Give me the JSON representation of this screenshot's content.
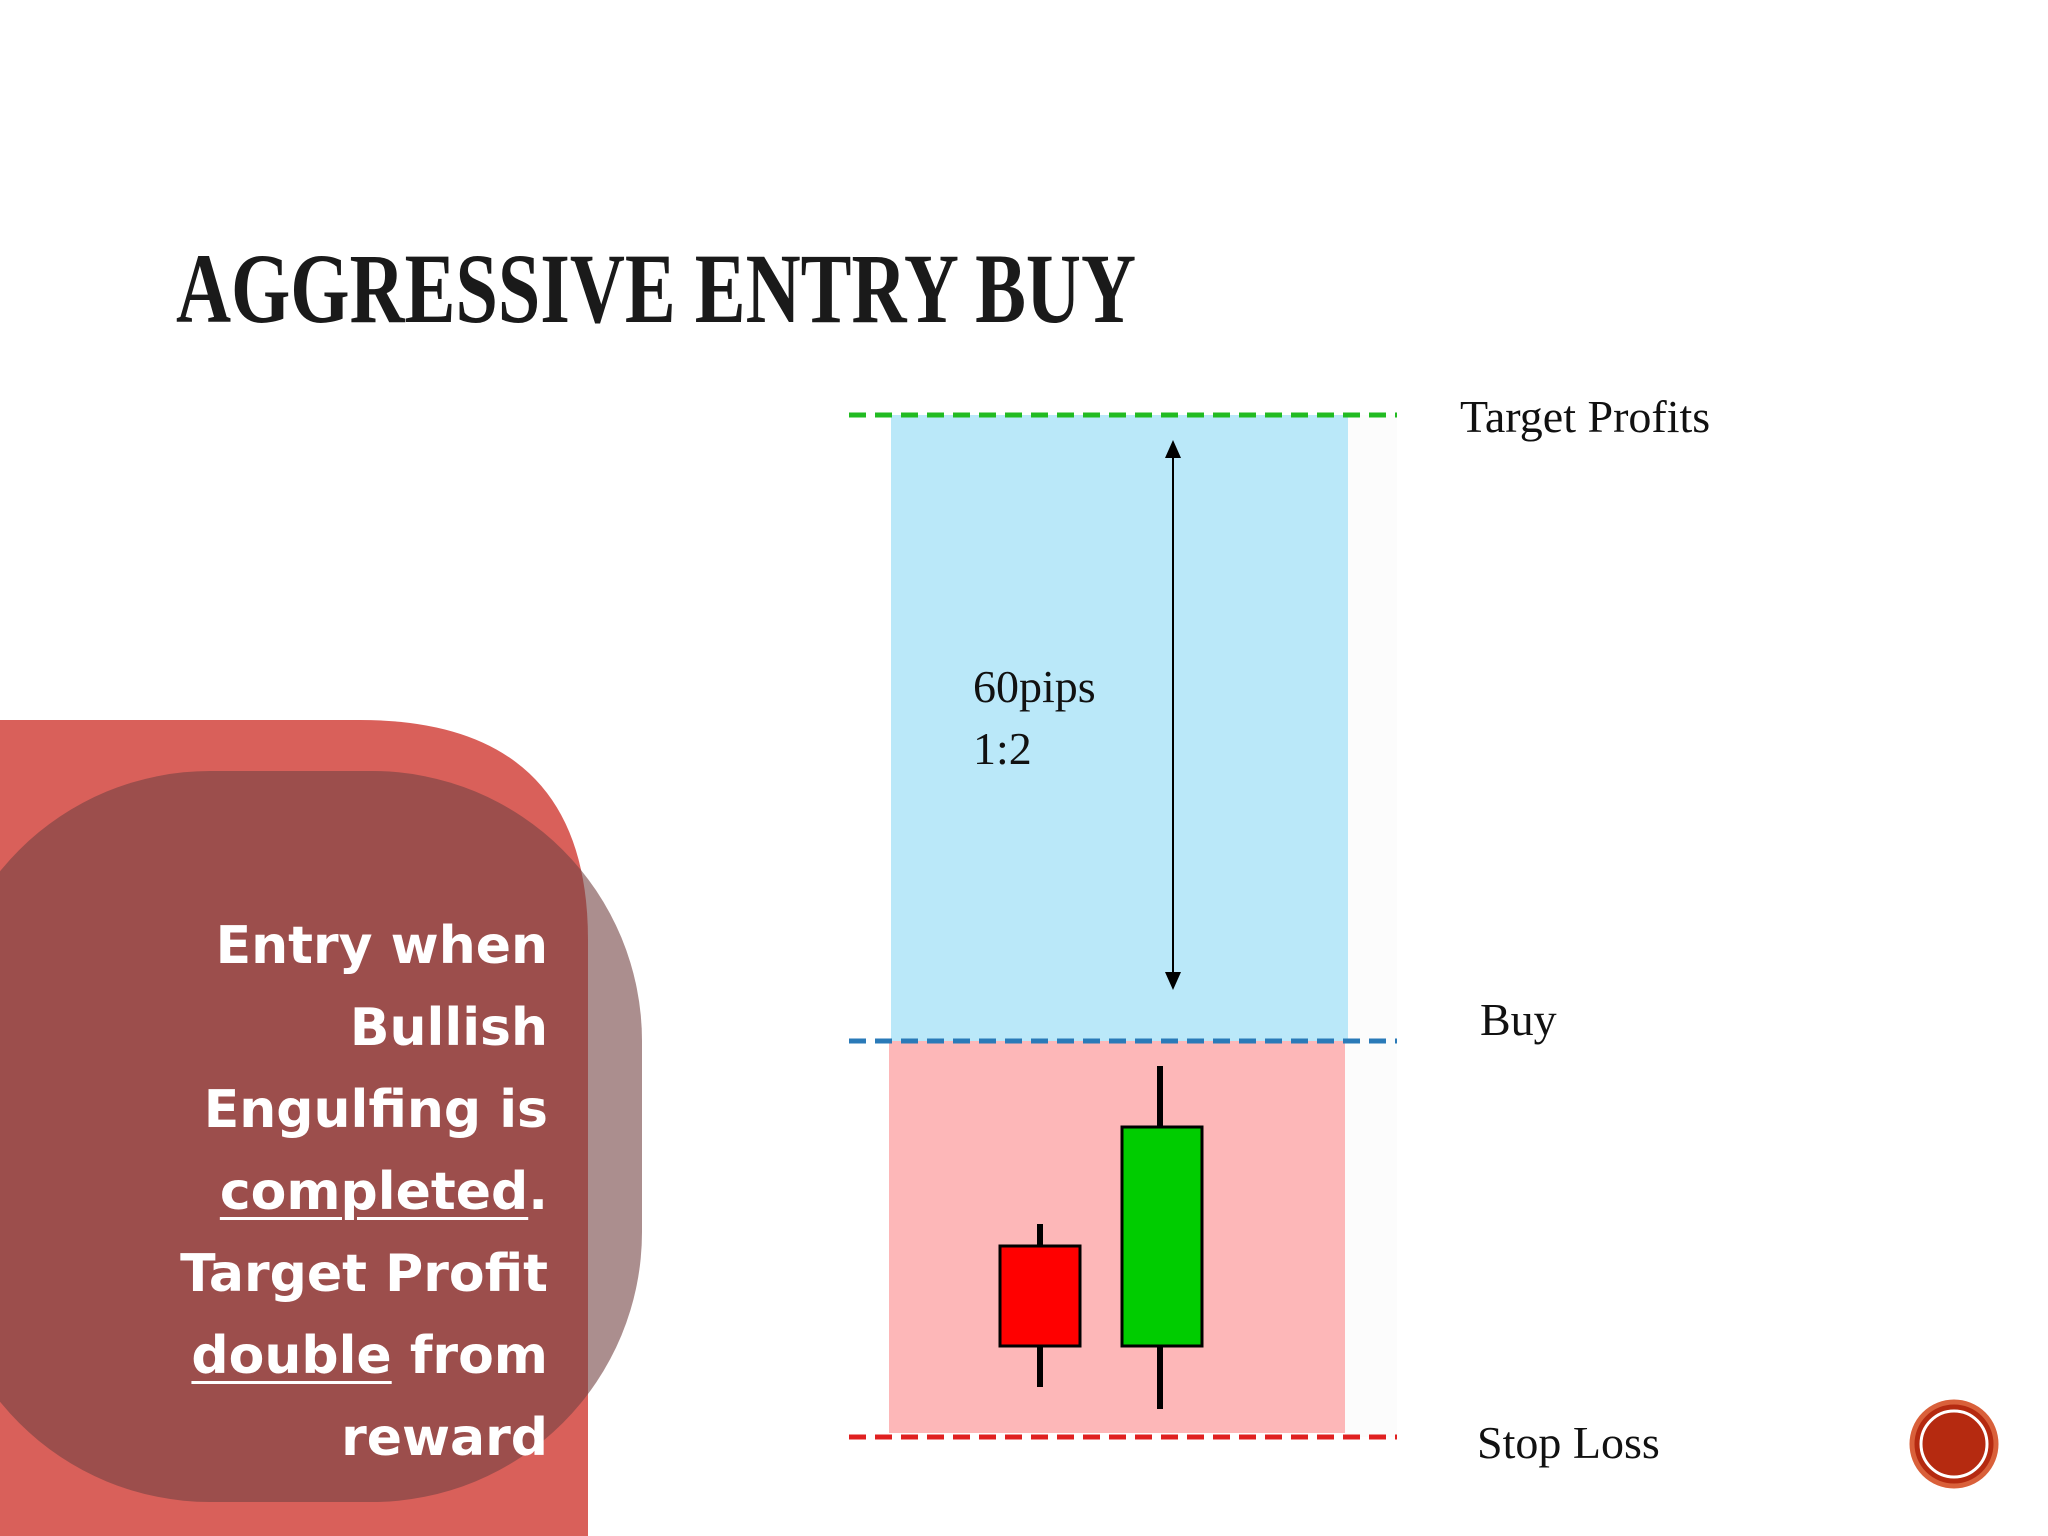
{
  "title": "AGGRESSIVE ENTRY BUY",
  "levels": {
    "target": "Target Profits",
    "buy": "Buy",
    "stop": "Stop Loss"
  },
  "range_note": {
    "pips": "60pips",
    "ratio": "1:2"
  },
  "note_lines": [
    [
      "Entry when"
    ],
    [
      "Bullish"
    ],
    [
      "Engulfing is"
    ],
    [
      "completed",
      "."
    ],
    [
      "Target Profit"
    ],
    [
      "double",
      "from"
    ],
    [
      "reward"
    ]
  ]
}
